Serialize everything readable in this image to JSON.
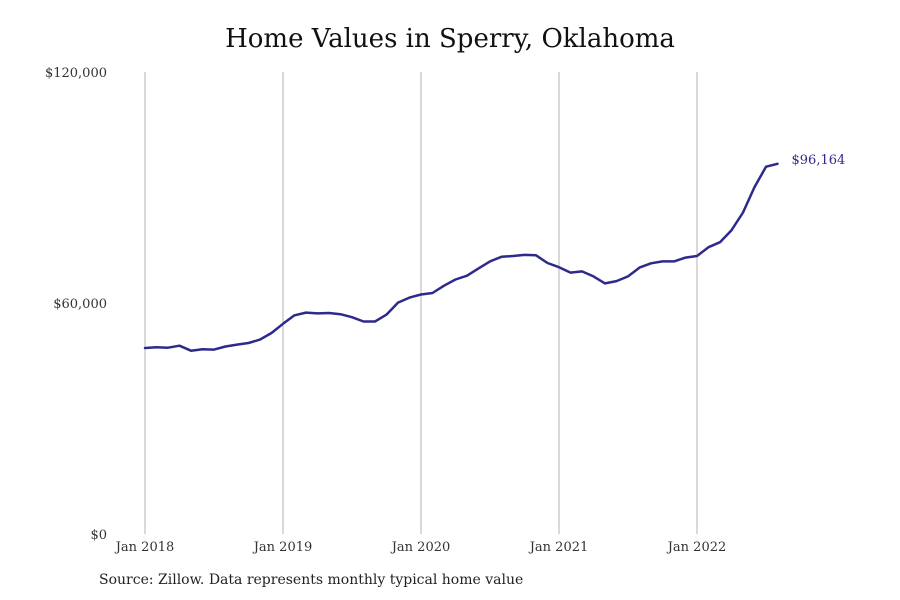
{
  "chart_data": {
    "type": "line",
    "title": "Home Values in Sperry, Oklahoma",
    "xlabel": "",
    "ylabel": "",
    "ylim": [
      0,
      120000
    ],
    "xlim": [
      "2018-01",
      "2022-11"
    ],
    "y_ticks": [
      {
        "value": 0,
        "label": "$0"
      },
      {
        "value": 60000,
        "label": "$60,000"
      },
      {
        "value": 120000,
        "label": "$120,000"
      }
    ],
    "x_ticks": [
      {
        "value": "2018-01",
        "label": "Jan 2018"
      },
      {
        "value": "2019-01",
        "label": "Jan 2019"
      },
      {
        "value": "2020-01",
        "label": "Jan 2020"
      },
      {
        "value": "2021-01",
        "label": "Jan 2021"
      },
      {
        "value": "2022-01",
        "label": "Jan 2022"
      }
    ],
    "grid": {
      "vertical": true,
      "horizontal": false
    },
    "line_color": "#2e2a8c",
    "series": [
      {
        "x": [
          "2018-01",
          "2018-02",
          "2018-03",
          "2018-04",
          "2018-05",
          "2018-06",
          "2018-07",
          "2018-08",
          "2018-09",
          "2018-10",
          "2018-11",
          "2018-12",
          "2019-01",
          "2019-02",
          "2019-03",
          "2019-04",
          "2019-05",
          "2019-06",
          "2019-07",
          "2019-08",
          "2019-09",
          "2019-10",
          "2019-11",
          "2019-12",
          "2020-01",
          "2020-02",
          "2020-03",
          "2020-04",
          "2020-05",
          "2020-06",
          "2020-07",
          "2020-08",
          "2020-09",
          "2020-10",
          "2020-11",
          "2020-12",
          "2021-01",
          "2021-02",
          "2021-03",
          "2021-04",
          "2021-05",
          "2021-06",
          "2021-07",
          "2021-08",
          "2021-09",
          "2021-10",
          "2021-11",
          "2021-12",
          "2022-01",
          "2022-02",
          "2022-03",
          "2022-04",
          "2022-05",
          "2022-06",
          "2022-07",
          "2022-08"
        ],
        "values": [
          48300,
          48500,
          48400,
          48900,
          47600,
          48000,
          47900,
          48700,
          49200,
          49600,
          50500,
          52200,
          54600,
          56800,
          57500,
          57300,
          57400,
          57100,
          56300,
          55200,
          55200,
          57000,
          60100,
          61400,
          62200,
          62600,
          64500,
          66100,
          67100,
          69000,
          70800,
          72000,
          72200,
          72500,
          72400,
          70400,
          69300,
          67900,
          68200,
          66900,
          65100,
          65700,
          66900,
          69200,
          70300,
          70800,
          70800,
          71800,
          72200,
          74500,
          75800,
          78900,
          83500,
          90100,
          95400,
          96164
        ]
      }
    ],
    "end_label": "$96,164"
  },
  "source_note": "Source: Zillow. Data represents monthly typical home value"
}
